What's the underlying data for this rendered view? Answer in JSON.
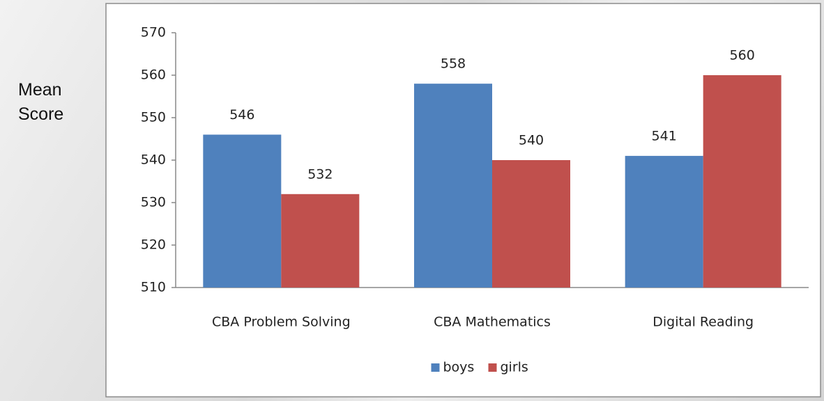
{
  "chart_data": {
    "type": "bar",
    "y_label": "Mean Score",
    "categories": [
      "CBA Problem Solving",
      "CBA Mathematics",
      "Digital Reading"
    ],
    "series": [
      {
        "name": "boys",
        "color": "#4f81bd",
        "values": [
          546,
          558,
          541
        ]
      },
      {
        "name": "girls",
        "color": "#c0504d",
        "values": [
          532,
          540,
          560
        ]
      }
    ],
    "ylim": [
      510,
      570
    ],
    "yticks": [
      510,
      520,
      530,
      540,
      550,
      560,
      570
    ],
    "grid": false,
    "legend": "bottom"
  }
}
